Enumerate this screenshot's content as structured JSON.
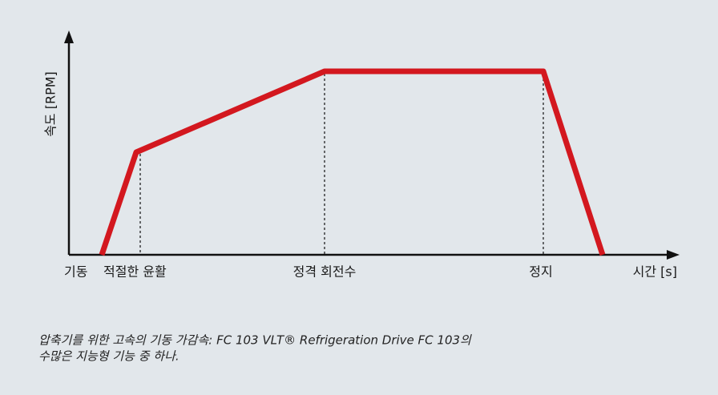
{
  "diagram": {
    "y_axis_label": "속도 [RPM]",
    "x_axis_label": "시간 [s]",
    "phases": [
      "기동",
      "적절한 윤활",
      "정격 회전수",
      "정지"
    ],
    "caption": [
      "압축기를 위한 고속의 기동 가감속: FC 103 VLT® Refrigeration Drive FC 103의",
      "수많은 지능형 기능 중 하나."
    ]
  }
}
